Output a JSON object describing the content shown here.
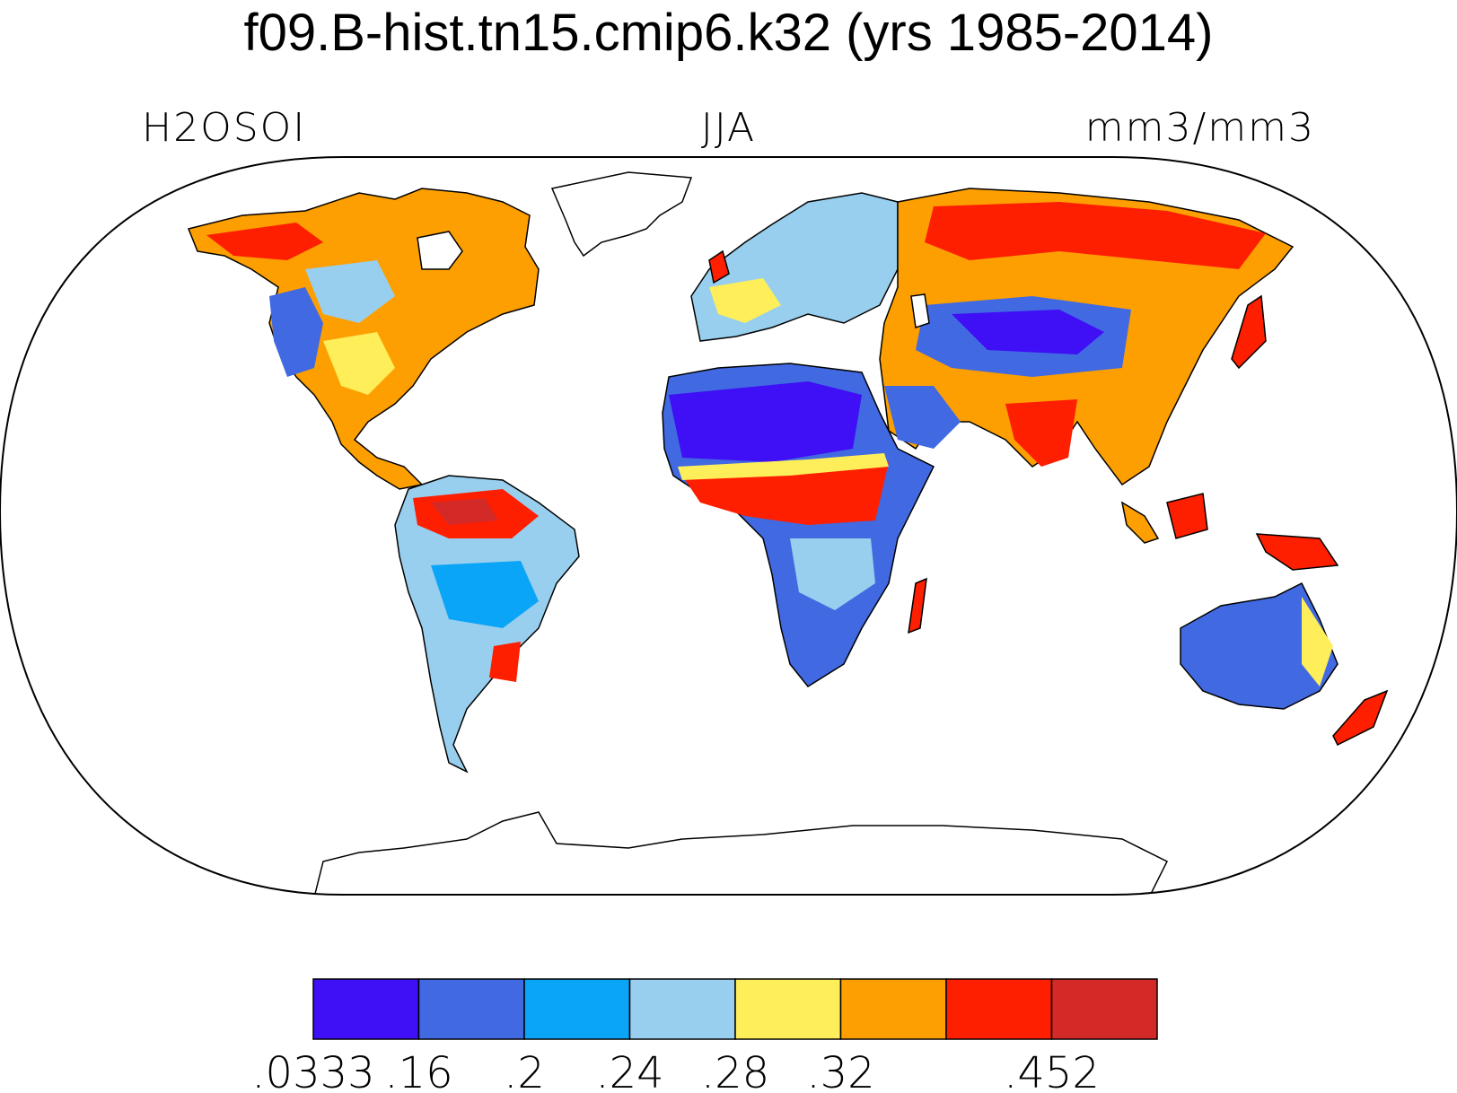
{
  "title": "f09.B-hist.tn15.cmip6.k32 (yrs 1985-2014)",
  "subtitle_left": "H2OSOI",
  "subtitle_center": "JJA",
  "subtitle_right": "mm3/mm3",
  "map": {
    "projection": "Robinson",
    "variable": "H2OSOI",
    "season": "JJA",
    "ocean_color": "#ffffff",
    "coastline_color": "#000000"
  },
  "colorbar": {
    "colors": [
      "#3f0ff5",
      "#4169e1",
      "#0ba5f7",
      "#98cfee",
      "#fdee5a",
      "#fd9f00",
      "#fe1e00",
      "#d42a27"
    ],
    "labels": [
      ".0333",
      ".16",
      ".2",
      ".24",
      ".28",
      ".32",
      ".452"
    ],
    "label_boundary_index": [
      0,
      1,
      2,
      3,
      4,
      5,
      7
    ]
  }
}
